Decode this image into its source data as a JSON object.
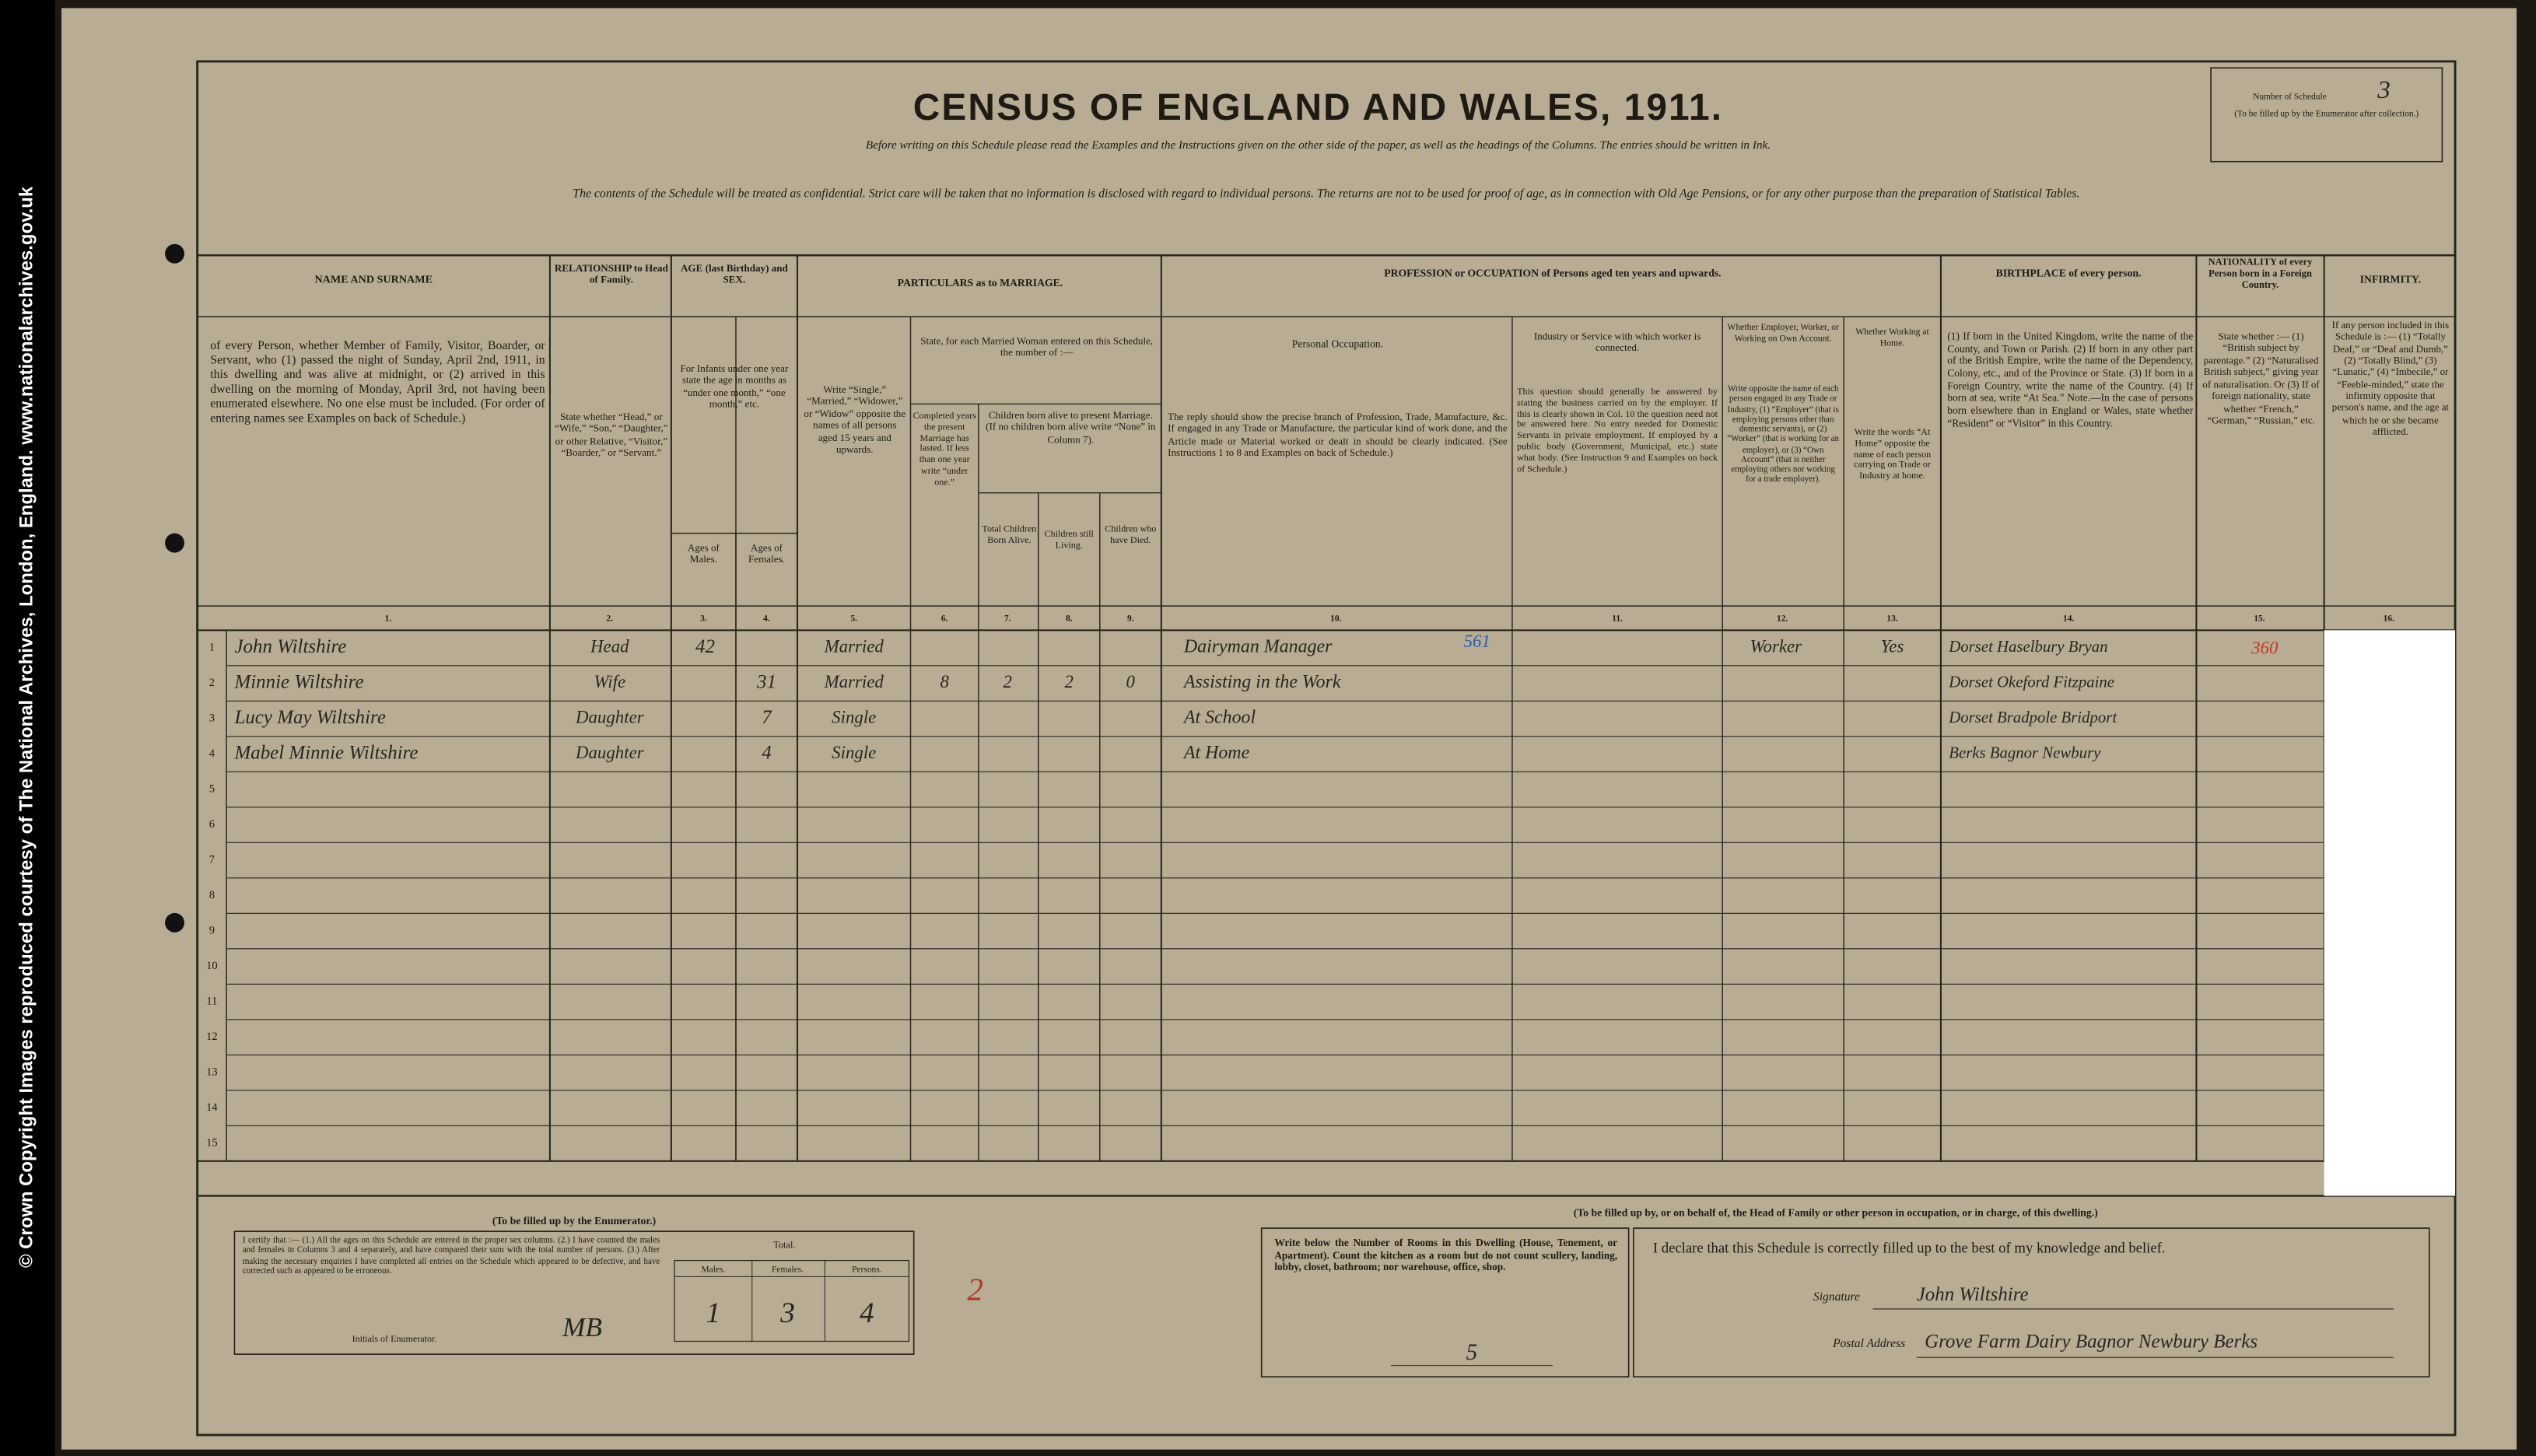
{
  "sidebar": {
    "copyright": "© Crown Copyright Images reproduced courtesy of The National Archives, London, England. www.nationalarchives.gov.uk"
  },
  "header": {
    "title": "CENSUS OF ENGLAND AND WALES, 1911.",
    "instructions": "Before writing on this Schedule please read the Examples and the Instructions given on the other side of the paper, as well as the headings of the Columns. The entries should be written in Ink.",
    "confidential": "The contents of the Schedule will be treated as confidential. Strict care will be taken that no information is disclosed with regard to individual persons. The returns are not to be used for proof of age, as in connection with Old Age Pensions, or for any other purpose than the preparation of Statistical Tables.",
    "schedule": {
      "label": "Number of Schedule",
      "value": "3",
      "note": "(To be filled up by the Enumerator after collection.)"
    }
  },
  "columns": {
    "name": {
      "heading": "NAME AND SURNAME",
      "description": "of every Person, whether Member of Family, Visitor, Boarder, or Servant, who (1) passed the night of Sunday, April 2nd, 1911, in this dwelling and was alive at midnight, or (2) arrived in this dwelling on the morning of Monday, April 3rd, not having been enumerated elsewhere. No one else must be included. (For order of entering names see Examples on back of Schedule.)",
      "number": "1."
    },
    "relationship": {
      "heading": "RELATIONSHIP to Head of Family.",
      "description": "State whether “Head,” or “Wife,” “Son,” “Daughter,” or other Relative, “Visitor,” “Boarder,” or “Servant.”",
      "number": "2."
    },
    "age": {
      "heading": "AGE (last Birthday) and SEX.",
      "description": "For Infants under one year state the age in months as “under one month,” “one month,” etc.",
      "males": {
        "heading": "Ages of Males.",
        "number": "3."
      },
      "females": {
        "heading": "Ages of Females.",
        "number": "4."
      }
    },
    "marriage": {
      "heading": "PARTICULARS as to MARRIAGE.",
      "condition": {
        "description": "Write “Single,” “Married,” “Widower,” or “Widow” opposite the names of all persons aged 15 years and upwards.",
        "number": "5."
      },
      "married_woman": "State, for each Married Woman entered on this Schedule, the number of :—",
      "years": {
        "description": "Completed years the present Marriage has lasted. If less than one year write “under one.”",
        "number": "6."
      },
      "children": "Children born alive to present Marriage. (If no children born alive write “None” in Column 7).",
      "born": {
        "heading": "Total Children Born Alive.",
        "number": "7."
      },
      "living": {
        "heading": "Children still Living.",
        "number": "8."
      },
      "died": {
        "heading": "Children who have Died.",
        "number": "9."
      }
    },
    "profession": {
      "heading": "PROFESSION or OCCUPATION of Persons aged ten years and upwards.",
      "personal": {
        "heading": "Personal Occupation.",
        "description": "The reply should show the precise branch of Profession, Trade, Manufacture, &c. If engaged in any Trade or Manufacture, the particular kind of work done, and the Article made or Material worked or dealt in should be clearly indicated. (See Instructions 1 to 8 and Examples on back of Schedule.)",
        "number": "10."
      },
      "industry": {
        "heading": "Industry or Service with which worker is connected.",
        "description": "This question should generally be answered by stating the business carried on by the employer. If this is clearly shown in Col. 10 the question need not be answered here. No entry needed for Domestic Servants in private employment. If employed by a public body (Government, Municipal, etc.) state what body. (See Instruction 9 and Examples on back of Schedule.)",
        "number": "11."
      },
      "employment": {
        "heading": "Whether Employer, Worker, or Working on Own Account.",
        "description": "Write opposite the name of each person engaged in any Trade or Industry, (1) “Employer” (that is employing persons other than domestic servants), or (2) “Worker” (that is working for an employer), or (3) “Own Account” (that is neither employing others nor working for a trade employer).",
        "number": "12."
      },
      "home": {
        "heading": "Whether Working at Home.",
        "description": "Write the words “At Home” opposite the name of each person carrying on Trade or Industry at home.",
        "number": "13."
      }
    },
    "birthplace": {
      "heading": "BIRTHPLACE of every person.",
      "description": "(1) If born in the United Kingdom, write the name of the County, and Town or Parish. (2) If born in any other part of the British Empire, write the name of the Dependency, Colony, etc., and of the Province or State. (3) If born in a Foreign Country, write the name of the Country. (4) If born at sea, write “At Sea.” Note.—In the case of persons born elsewhere than in England or Wales, state whether “Resident” or “Visitor” in this Country.",
      "number": "14."
    },
    "nationality": {
      "heading": "NATIONALITY of every Person born in a Foreign Country.",
      "description": "State whether :— (1) “British subject by parentage.” (2) “Naturalised British subject,” giving year of naturalisation. Or (3) If of foreign nationality, state whether “French,” “German,” “Russian,” etc.",
      "number": "15."
    },
    "infirmity": {
      "heading": "INFIRMITY.",
      "description": "If any person included in this Schedule is :— (1) “Totally Deaf,” or “Deaf and Dumb,” (2) “Totally Blind,” (3) “Lunatic,” (4) “Imbecile,” or “Feeble-minded,” state the infirmity opposite that person's name, and the age at which he or she became afflicted.",
      "number": "16."
    }
  },
  "rows": [
    {
      "number": 1,
      "name": "John Wiltshire",
      "relationship": "Head",
      "age_male": "42",
      "condition": "Married",
      "occupation": "Dairyman Manager",
      "employment": "Worker",
      "at_home": "Yes",
      "birthplace": "Dorset Haselbury Bryan"
    },
    {
      "number": 2,
      "name": "Minnie Wiltshire",
      "relationship": "Wife",
      "age_female": "31",
      "condition": "Married",
      "years": "8",
      "born": "2",
      "living": "2",
      "died": "0",
      "occupation": "Assisting in the Work",
      "birthplace": "Dorset Okeford Fitzpaine"
    },
    {
      "number": 3,
      "name": "Lucy May Wiltshire",
      "relationship": "Daughter",
      "age_female": "7",
      "condition": "Single",
      "occupation": "At School",
      "birthplace": "Dorset Bradpole Bridport"
    },
    {
      "number": 4,
      "name": "Mabel Minnie Wiltshire",
      "relationship": "Daughter",
      "age_female": "4",
      "condition": "Single",
      "occupation": "At Home",
      "birthplace": "Berks Bagnor Newbury"
    },
    {
      "number": 5
    },
    {
      "number": 6
    },
    {
      "number": 7
    },
    {
      "number": 8
    },
    {
      "number": 9
    },
    {
      "number": 10
    },
    {
      "number": 11
    },
    {
      "number": 12
    },
    {
      "number": 13
    },
    {
      "number": 14
    },
    {
      "number": 15
    }
  ],
  "annotations": {
    "occupation_code": "561",
    "birthplace_code": "360",
    "check": "2"
  },
  "enumerator": {
    "heading": "(To be filled up by the Enumerator.)",
    "certify": "I certify that :— (1.) All the ages on this Schedule are entered in the proper sex columns. (2.) I have counted the males and females in Columns 3 and 4 separately, and have compared their sum with the total number of persons. (3.) After making the necessary enquiries I have completed all entries on the Schedule which appeared to be defective, and have corrected such as appeared to be erroneous.",
    "initials_label": "Initials of Enumerator.",
    "initials": "MB",
    "total_label": "Total.",
    "males_label": "Males.",
    "females_label": "Females.",
    "persons_label": "Persons.",
    "males": "1",
    "females": "3",
    "persons": "4"
  },
  "household": {
    "heading": "(To be filled up by, or on behalf of, the Head of Family or other person in occupation, or in charge, of this dwelling.)",
    "rooms_instruction": "Write below the Number of Rooms in this Dwelling (House, Tenement, or Apartment). Count the kitchen as a room but do not count scullery, landing, lobby, closet, bathroom; nor warehouse, office, shop.",
    "rooms": "5",
    "declaration": "I declare that this Schedule is correctly filled up to the best of my knowledge and belief.",
    "signature_label": "Signature",
    "signature": "John Wiltshire",
    "address_label": "Postal Address",
    "address": "Grove Farm Dairy Bagnor Newbury Berks"
  }
}
